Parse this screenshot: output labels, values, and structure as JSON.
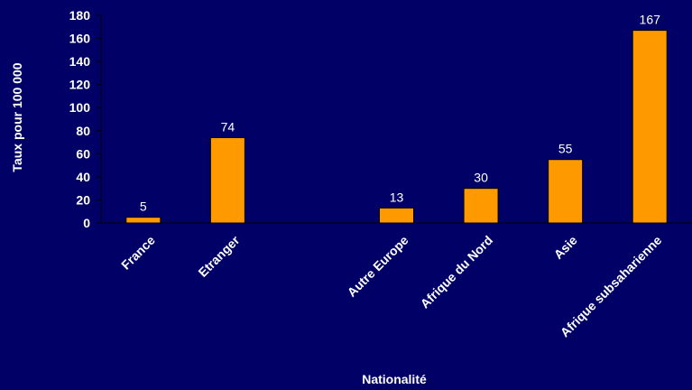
{
  "chart_data": {
    "type": "bar",
    "categories": [
      "France",
      "Etranger",
      "",
      "Autre Europe",
      "Afrique du Nord",
      "Asie",
      "Afrique subsaharienne"
    ],
    "values": [
      5,
      74,
      null,
      13,
      30,
      55,
      167
    ],
    "data_labels": [
      "5",
      "74",
      "",
      "13",
      "30",
      "55",
      "167"
    ],
    "xlabel": "Nationalité",
    "ylabel": "Taux pour 100 000",
    "ylim": [
      0,
      180
    ],
    "yticks": [
      "0",
      "20",
      "40",
      "60",
      "80",
      "100",
      "120",
      "140",
      "160",
      "180"
    ],
    "grid": false,
    "colors": {
      "background": "#000066",
      "bar": "#FF9900",
      "bar_stroke": "#000000",
      "axis": "#000000",
      "text": "#ffffff"
    }
  }
}
